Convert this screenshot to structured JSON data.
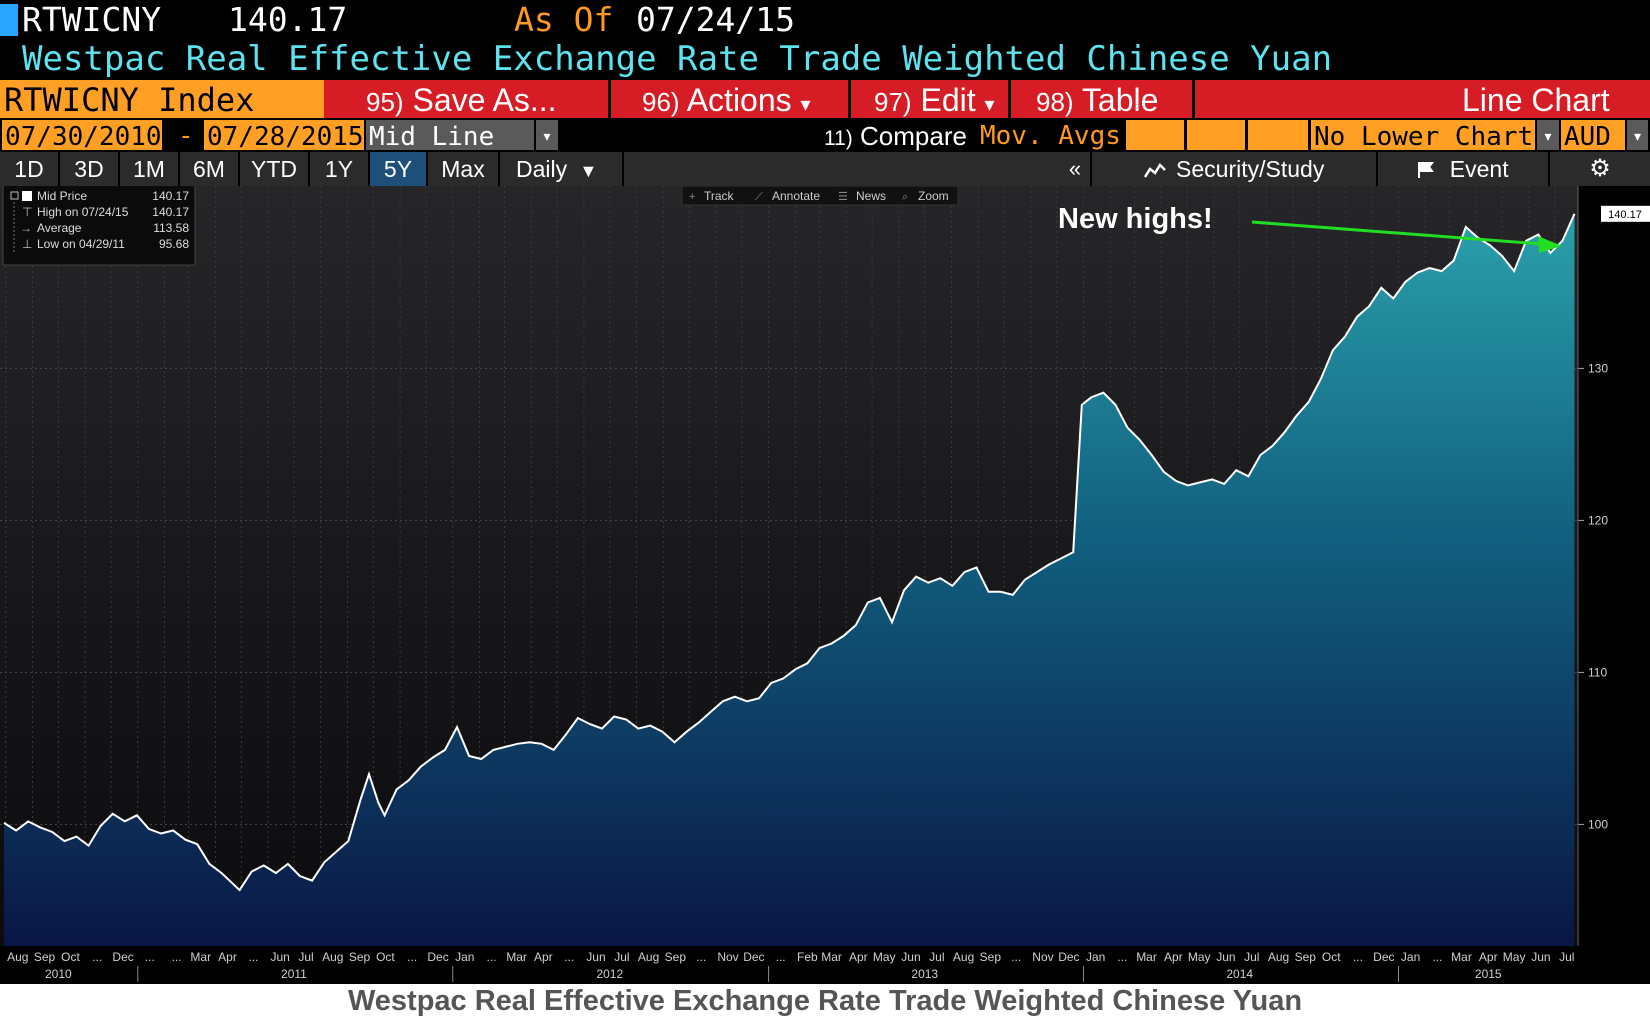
{
  "header": {
    "ticker": "RTWICNY",
    "price": "140.17",
    "as_of_label": "As Of",
    "as_of_date": "07/24/15",
    "long_name": "Westpac Real Effective Exchange Rate Trade Weighted Chinese Yuan",
    "accent_color": "#ffa024",
    "menu_color": "#d61d25"
  },
  "menu": {
    "index_label": "RTWICNY Index",
    "items": [
      {
        "num": "95)",
        "label": "Save As..."
      },
      {
        "num": "96)",
        "label": "Actions",
        "dropdown": "▾"
      },
      {
        "num": "97)",
        "label": "Edit",
        "dropdown": "▾"
      },
      {
        "num": "98)",
        "label": "Table"
      }
    ],
    "chart_type": "Line Chart"
  },
  "range": {
    "start": "07/30/2010",
    "dash": "-",
    "end": "07/28/2015",
    "line_type": "Mid Line",
    "compare_num": "11)",
    "compare_label": "Compare",
    "mov_avgs": "Mov. Avgs",
    "lower_chart": "No Lower Chart",
    "currency": "AUD",
    "dropdown_icon": "▾"
  },
  "periods": {
    "items": [
      "1D",
      "3D",
      "1M",
      "6M",
      "YTD",
      "1Y",
      "5Y",
      "Max"
    ],
    "active": "5Y",
    "frequency": "Daily",
    "freq_arrow": "▼",
    "collapse": "«",
    "security_study": "Security/Study",
    "event": "Event",
    "settings_icon": "⚙"
  },
  "toolbar": {
    "track": "Track",
    "annotate": "Annotate",
    "news": "News",
    "zoom": "Zoom"
  },
  "legend": {
    "rows": [
      {
        "label": "Mid Price",
        "value": "140.17"
      },
      {
        "label": "High on 07/24/15",
        "value": "140.17"
      },
      {
        "label": "Average",
        "value": "113.58"
      },
      {
        "label": "Low on 04/29/11",
        "value": "95.68"
      }
    ]
  },
  "annotation": {
    "text": "New highs!",
    "arrow_color": "#22dd22"
  },
  "last_price_tag": "140.17",
  "caption": "Westpac Real Effective Exchange Rate Trade Weighted Chinese Yuan",
  "chart_data": {
    "type": "area",
    "title": "Westpac Real Effective Exchange Rate Trade Weighted Chinese Yuan",
    "ylim": [
      92,
      142
    ],
    "yticks": [
      100,
      110,
      120,
      130
    ],
    "grid": true,
    "legend_position": "top-left",
    "x_range": [
      "2010-07-30",
      "2015-07-28"
    ],
    "series": [
      {
        "name": "Mid Price",
        "color": "#ffffff",
        "points": [
          [
            "2010-07-30",
            100.1
          ],
          [
            "2010-08-13",
            99.6
          ],
          [
            "2010-08-27",
            100.2
          ],
          [
            "2010-09-10",
            99.8
          ],
          [
            "2010-09-24",
            99.5
          ],
          [
            "2010-10-08",
            98.9
          ],
          [
            "2010-10-22",
            99.2
          ],
          [
            "2010-11-05",
            98.6
          ],
          [
            "2010-11-19",
            99.9
          ],
          [
            "2010-12-03",
            100.7
          ],
          [
            "2010-12-17",
            100.2
          ],
          [
            "2010-12-31",
            100.6
          ],
          [
            "2011-01-14",
            99.7
          ],
          [
            "2011-01-28",
            99.4
          ],
          [
            "2011-02-11",
            99.6
          ],
          [
            "2011-02-25",
            99.0
          ],
          [
            "2011-03-11",
            98.7
          ],
          [
            "2011-03-25",
            97.4
          ],
          [
            "2011-04-08",
            96.8
          ],
          [
            "2011-04-29",
            95.68
          ],
          [
            "2011-05-13",
            96.9
          ],
          [
            "2011-05-27",
            97.3
          ],
          [
            "2011-06-10",
            96.8
          ],
          [
            "2011-06-24",
            97.4
          ],
          [
            "2011-07-08",
            96.6
          ],
          [
            "2011-07-22",
            96.3
          ],
          [
            "2011-08-05",
            97.5
          ],
          [
            "2011-08-19",
            98.2
          ],
          [
            "2011-09-02",
            98.9
          ],
          [
            "2011-09-16",
            101.6
          ],
          [
            "2011-09-26",
            103.3
          ],
          [
            "2011-10-07",
            101.4
          ],
          [
            "2011-10-14",
            100.6
          ],
          [
            "2011-10-28",
            102.3
          ],
          [
            "2011-11-11",
            102.9
          ],
          [
            "2011-11-25",
            103.8
          ],
          [
            "2011-12-09",
            104.4
          ],
          [
            "2011-12-23",
            104.9
          ],
          [
            "2012-01-06",
            106.4
          ],
          [
            "2012-01-20",
            104.5
          ],
          [
            "2012-02-03",
            104.3
          ],
          [
            "2012-02-17",
            104.9
          ],
          [
            "2012-03-02",
            105.1
          ],
          [
            "2012-03-16",
            105.3
          ],
          [
            "2012-03-30",
            105.4
          ],
          [
            "2012-04-13",
            105.3
          ],
          [
            "2012-04-27",
            104.9
          ],
          [
            "2012-05-11",
            105.9
          ],
          [
            "2012-05-25",
            107.0
          ],
          [
            "2012-06-08",
            106.6
          ],
          [
            "2012-06-22",
            106.3
          ],
          [
            "2012-07-06",
            107.1
          ],
          [
            "2012-07-20",
            106.9
          ],
          [
            "2012-08-03",
            106.3
          ],
          [
            "2012-08-17",
            106.5
          ],
          [
            "2012-08-31",
            106.1
          ],
          [
            "2012-09-14",
            105.4
          ],
          [
            "2012-09-28",
            106.1
          ],
          [
            "2012-10-12",
            106.7
          ],
          [
            "2012-10-26",
            107.4
          ],
          [
            "2012-11-09",
            108.1
          ],
          [
            "2012-11-23",
            108.4
          ],
          [
            "2012-12-07",
            108.1
          ],
          [
            "2012-12-21",
            108.3
          ],
          [
            "2013-01-04",
            109.3
          ],
          [
            "2013-01-18",
            109.6
          ],
          [
            "2013-02-01",
            110.2
          ],
          [
            "2013-02-15",
            110.6
          ],
          [
            "2013-03-01",
            111.6
          ],
          [
            "2013-03-15",
            111.9
          ],
          [
            "2013-03-29",
            112.4
          ],
          [
            "2013-04-12",
            113.1
          ],
          [
            "2013-04-26",
            114.6
          ],
          [
            "2013-05-10",
            114.9
          ],
          [
            "2013-05-24",
            113.3
          ],
          [
            "2013-06-07",
            115.4
          ],
          [
            "2013-06-21",
            116.3
          ],
          [
            "2013-07-05",
            115.9
          ],
          [
            "2013-07-19",
            116.2
          ],
          [
            "2013-08-02",
            115.7
          ],
          [
            "2013-08-16",
            116.6
          ],
          [
            "2013-08-30",
            116.9
          ],
          [
            "2013-09-13",
            115.3
          ],
          [
            "2013-09-27",
            115.3
          ],
          [
            "2013-10-11",
            115.1
          ],
          [
            "2013-10-25",
            116.1
          ],
          [
            "2013-11-08",
            116.6
          ],
          [
            "2013-11-22",
            117.1
          ],
          [
            "2013-12-06",
            117.5
          ],
          [
            "2013-12-20",
            117.9
          ],
          [
            "2013-12-30",
            127.6
          ],
          [
            "2014-01-10",
            128.1
          ],
          [
            "2014-01-24",
            128.4
          ],
          [
            "2014-02-07",
            127.6
          ],
          [
            "2014-02-21",
            126.1
          ],
          [
            "2014-03-07",
            125.3
          ],
          [
            "2014-03-21",
            124.3
          ],
          [
            "2014-04-04",
            123.2
          ],
          [
            "2014-04-18",
            122.6
          ],
          [
            "2014-05-02",
            122.3
          ],
          [
            "2014-05-16",
            122.5
          ],
          [
            "2014-05-30",
            122.7
          ],
          [
            "2014-06-13",
            122.4
          ],
          [
            "2014-06-27",
            123.3
          ],
          [
            "2014-07-11",
            122.9
          ],
          [
            "2014-07-25",
            124.3
          ],
          [
            "2014-08-08",
            124.9
          ],
          [
            "2014-08-22",
            125.8
          ],
          [
            "2014-09-05",
            126.9
          ],
          [
            "2014-09-19",
            127.8
          ],
          [
            "2014-10-03",
            129.3
          ],
          [
            "2014-10-17",
            131.2
          ],
          [
            "2014-10-31",
            132.1
          ],
          [
            "2014-11-14",
            133.4
          ],
          [
            "2014-11-28",
            134.1
          ],
          [
            "2014-12-12",
            135.3
          ],
          [
            "2014-12-26",
            134.6
          ],
          [
            "2015-01-09",
            135.7
          ],
          [
            "2015-01-23",
            136.3
          ],
          [
            "2015-02-06",
            136.6
          ],
          [
            "2015-02-20",
            136.4
          ],
          [
            "2015-03-06",
            137.1
          ],
          [
            "2015-03-20",
            139.3
          ],
          [
            "2015-04-03",
            138.6
          ],
          [
            "2015-04-17",
            138.1
          ],
          [
            "2015-05-01",
            137.4
          ],
          [
            "2015-05-15",
            136.4
          ],
          [
            "2015-05-29",
            138.4
          ],
          [
            "2015-06-12",
            138.8
          ],
          [
            "2015-06-26",
            137.6
          ],
          [
            "2015-07-10",
            138.4
          ],
          [
            "2015-07-24",
            140.17
          ]
        ]
      }
    ],
    "x_month_labels": [
      [
        "2010-08-15",
        "Aug"
      ],
      [
        "2010-09-15",
        "Sep"
      ],
      [
        "2010-10-15",
        "Oct"
      ],
      [
        "2010-11-15",
        "..."
      ],
      [
        "2010-12-15",
        "Dec"
      ],
      [
        "2011-01-15",
        "..."
      ],
      [
        "2011-02-15",
        "..."
      ],
      [
        "2011-03-15",
        "Mar"
      ],
      [
        "2011-04-15",
        "Apr"
      ],
      [
        "2011-05-15",
        "..."
      ],
      [
        "2011-06-15",
        "Jun"
      ],
      [
        "2011-07-15",
        "Jul"
      ],
      [
        "2011-08-15",
        "Aug"
      ],
      [
        "2011-09-15",
        "Sep"
      ],
      [
        "2011-10-15",
        "Oct"
      ],
      [
        "2011-11-15",
        "..."
      ],
      [
        "2011-12-15",
        "Dec"
      ],
      [
        "2012-01-15",
        "Jan"
      ],
      [
        "2012-02-15",
        "..."
      ],
      [
        "2012-03-15",
        "Mar"
      ],
      [
        "2012-04-15",
        "Apr"
      ],
      [
        "2012-05-15",
        "..."
      ],
      [
        "2012-06-15",
        "Jun"
      ],
      [
        "2012-07-15",
        "Jul"
      ],
      [
        "2012-08-15",
        "Aug"
      ],
      [
        "2012-09-15",
        "Sep"
      ],
      [
        "2012-10-15",
        "..."
      ],
      [
        "2012-11-15",
        "Nov"
      ],
      [
        "2012-12-15",
        "Dec"
      ],
      [
        "2013-01-15",
        "..."
      ],
      [
        "2013-02-15",
        "Feb"
      ],
      [
        "2013-03-15",
        "Mar"
      ],
      [
        "2013-04-15",
        "Apr"
      ],
      [
        "2013-05-15",
        "May"
      ],
      [
        "2013-06-15",
        "Jun"
      ],
      [
        "2013-07-15",
        "Jul"
      ],
      [
        "2013-08-15",
        "Aug"
      ],
      [
        "2013-09-15",
        "Sep"
      ],
      [
        "2013-10-15",
        "..."
      ],
      [
        "2013-11-15",
        "Nov"
      ],
      [
        "2013-12-15",
        "Dec"
      ],
      [
        "2014-01-15",
        "Jan"
      ],
      [
        "2014-02-15",
        "..."
      ],
      [
        "2014-03-15",
        "Mar"
      ],
      [
        "2014-04-15",
        "Apr"
      ],
      [
        "2014-05-15",
        "May"
      ],
      [
        "2014-06-15",
        "Jun"
      ],
      [
        "2014-07-15",
        "Jul"
      ],
      [
        "2014-08-15",
        "Aug"
      ],
      [
        "2014-09-15",
        "Sep"
      ],
      [
        "2014-10-15",
        "Oct"
      ],
      [
        "2014-11-15",
        "..."
      ],
      [
        "2014-12-15",
        "Dec"
      ],
      [
        "2015-01-15",
        "Jan"
      ],
      [
        "2015-02-15",
        "..."
      ],
      [
        "2015-03-15",
        "Mar"
      ],
      [
        "2015-04-15",
        "Apr"
      ],
      [
        "2015-05-15",
        "May"
      ],
      [
        "2015-06-15",
        "Jun"
      ],
      [
        "2015-07-15",
        "Jul"
      ]
    ],
    "x_year_labels": [
      [
        "2010-10-01",
        "2010"
      ],
      [
        "2011-07-01",
        "2011"
      ],
      [
        "2012-07-01",
        "2012"
      ],
      [
        "2013-07-01",
        "2013"
      ],
      [
        "2014-07-01",
        "2014"
      ],
      [
        "2015-04-15",
        "2015"
      ]
    ]
  }
}
